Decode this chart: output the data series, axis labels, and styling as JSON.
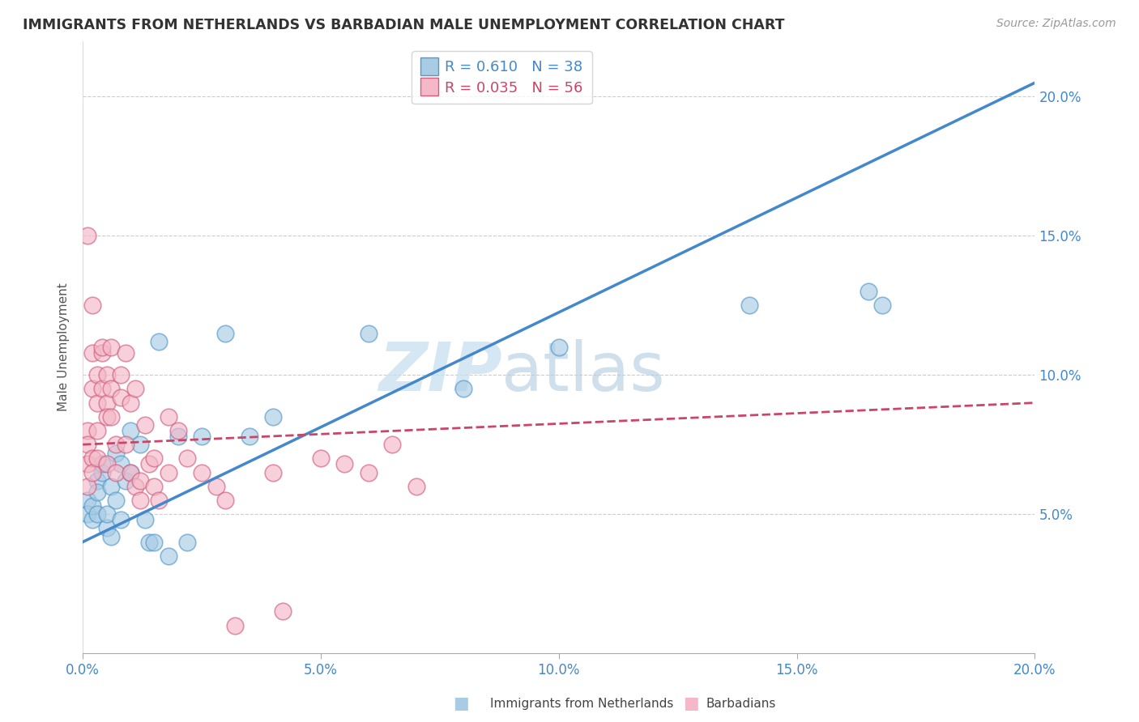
{
  "title": "IMMIGRANTS FROM NETHERLANDS VS BARBADIAN MALE UNEMPLOYMENT CORRELATION CHART",
  "source": "Source: ZipAtlas.com",
  "ylabel": "Male Unemployment",
  "legend_label1": "Immigrants from Netherlands",
  "legend_label2": "Barbadians",
  "R1": 0.61,
  "N1": 38,
  "R2": 0.035,
  "N2": 56,
  "color_blue": "#a8cce4",
  "color_pink": "#f4b8c8",
  "color_blue_edge": "#5599cc",
  "color_pink_edge": "#d06080",
  "color_blue_line": "#4488cc",
  "color_pink_line": "#cc4466",
  "watermark_zip": "ZIP",
  "watermark_atlas": "atlas",
  "xlim": [
    0.0,
    0.2
  ],
  "ylim": [
    0.0,
    0.22
  ],
  "xticks": [
    0.0,
    0.05,
    0.1,
    0.15,
    0.2
  ],
  "yticks": [
    0.05,
    0.1,
    0.15,
    0.2
  ],
  "blue_line_x0": 0.0,
  "blue_line_y0": 0.04,
  "blue_line_x1": 0.2,
  "blue_line_y1": 0.205,
  "pink_line_x0": 0.0,
  "pink_line_y0": 0.075,
  "pink_line_x1": 0.2,
  "pink_line_y1": 0.09,
  "blue_scatter_x": [
    0.001,
    0.001,
    0.002,
    0.002,
    0.003,
    0.003,
    0.003,
    0.004,
    0.004,
    0.005,
    0.005,
    0.006,
    0.006,
    0.007,
    0.007,
    0.008,
    0.008,
    0.009,
    0.01,
    0.01,
    0.012,
    0.013,
    0.014,
    0.015,
    0.016,
    0.018,
    0.02,
    0.022,
    0.025,
    0.03,
    0.035,
    0.04,
    0.06,
    0.08,
    0.1,
    0.14,
    0.165,
    0.168
  ],
  "blue_scatter_y": [
    0.055,
    0.05,
    0.048,
    0.053,
    0.062,
    0.058,
    0.05,
    0.065,
    0.068,
    0.045,
    0.05,
    0.042,
    0.06,
    0.072,
    0.055,
    0.048,
    0.068,
    0.062,
    0.08,
    0.065,
    0.075,
    0.048,
    0.04,
    0.04,
    0.112,
    0.035,
    0.078,
    0.04,
    0.078,
    0.115,
    0.078,
    0.085,
    0.115,
    0.095,
    0.11,
    0.125,
    0.13,
    0.125
  ],
  "pink_scatter_x": [
    0.001,
    0.001,
    0.001,
    0.001,
    0.001,
    0.002,
    0.002,
    0.002,
    0.002,
    0.002,
    0.003,
    0.003,
    0.003,
    0.003,
    0.004,
    0.004,
    0.004,
    0.005,
    0.005,
    0.005,
    0.005,
    0.006,
    0.006,
    0.006,
    0.007,
    0.007,
    0.008,
    0.008,
    0.009,
    0.009,
    0.01,
    0.01,
    0.011,
    0.011,
    0.012,
    0.012,
    0.013,
    0.014,
    0.015,
    0.015,
    0.016,
    0.018,
    0.018,
    0.02,
    0.022,
    0.025,
    0.028,
    0.03,
    0.032,
    0.04,
    0.042,
    0.05,
    0.055,
    0.06,
    0.065,
    0.07
  ],
  "pink_scatter_y": [
    0.08,
    0.075,
    0.068,
    0.06,
    0.15,
    0.125,
    0.108,
    0.095,
    0.07,
    0.065,
    0.1,
    0.09,
    0.08,
    0.07,
    0.108,
    0.095,
    0.11,
    0.1,
    0.09,
    0.085,
    0.068,
    0.11,
    0.095,
    0.085,
    0.075,
    0.065,
    0.1,
    0.092,
    0.108,
    0.075,
    0.09,
    0.065,
    0.095,
    0.06,
    0.062,
    0.055,
    0.082,
    0.068,
    0.06,
    0.07,
    0.055,
    0.065,
    0.085,
    0.08,
    0.07,
    0.065,
    0.06,
    0.055,
    0.01,
    0.065,
    0.015,
    0.07,
    0.068,
    0.065,
    0.075,
    0.06
  ]
}
